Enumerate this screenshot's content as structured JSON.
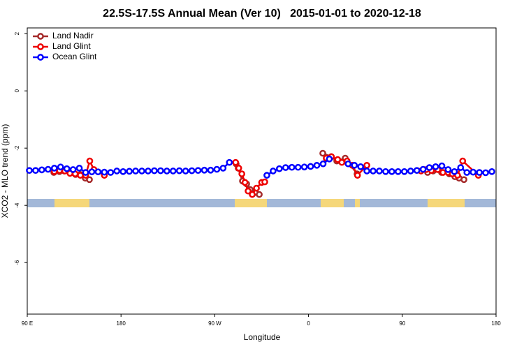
{
  "chart_data": {
    "type": "line",
    "title": "22.5S-17.5S Annual Mean (Ver 10)   2015-01-01 to 2020-12-18",
    "xlabel": "Longitude",
    "ylabel": "XCO2 - MLO trend (ppm)",
    "xlim": [
      90,
      540
    ],
    "ylim": [
      -7.8,
      2.2
    ],
    "xticks": [
      {
        "value": 90,
        "label": "90 E"
      },
      180,
      {
        "value": 270,
        "label": "90 W"
      },
      {
        "value": 360,
        "label": "0"
      },
      {
        "value": 450,
        "label": "90"
      },
      {
        "value": 540,
        "label": "180"
      }
    ],
    "yticks": [
      2,
      0,
      -2,
      -4,
      -6
    ],
    "legend": "top-left",
    "series": [
      {
        "name": "Land Nadir",
        "color": "#a52a2a",
        "x": [
          115.5,
          120.9,
          125.5,
          130.9,
          136.3,
          141,
          145.7,
          149.7,
          220,
          290.5,
          292.5,
          296.6,
          300.6,
          304,
          308.7,
          312.7,
          340,
          373.7,
          381.8,
          387.1,
          395.2,
          406.6,
          440,
          474.3,
          479.6,
          487.7,
          495.1,
          500.5,
          504.5,
          509.2
        ],
        "values": [
          -2.85,
          -2.82,
          -2.8,
          -2.85,
          -2.92,
          -2.92,
          -3.05,
          -3.1,
          null,
          -2.55,
          -2.7,
          -3.15,
          -3.25,
          -3.45,
          -3.55,
          -3.62,
          null,
          -2.18,
          -2.3,
          -2.45,
          -2.35,
          -2.9,
          null,
          -2.85,
          -2.8,
          -2.85,
          -2.9,
          -3,
          -3.05,
          -3.1
        ]
      },
      {
        "name": "Land Glint",
        "color": "#ee0000",
        "x": [
          116,
          121,
          126,
          131,
          136,
          141,
          146,
          150,
          154,
          164,
          220,
          290,
          293,
          296,
          299,
          302,
          306,
          310,
          315,
          318,
          350,
          377,
          382,
          388,
          392,
          397,
          402,
          407,
          416,
          450,
          468,
          473,
          478,
          484,
          489,
          494,
          498,
          503,
          508,
          523
        ],
        "values": [
          -2.82,
          -2.78,
          -2.8,
          -2.88,
          -2.9,
          -2.95,
          -2.95,
          -2.45,
          -2.75,
          -2.95,
          null,
          -2.5,
          -2.7,
          -2.9,
          -3.2,
          -3.5,
          -3.62,
          -3.4,
          -3.2,
          -3.18,
          null,
          -2.35,
          -2.3,
          -2.4,
          -2.5,
          -2.45,
          -2.6,
          -2.95,
          -2.6,
          null,
          -2.8,
          -2.75,
          -2.78,
          -2.75,
          -2.85,
          -2.85,
          -2.9,
          -2.95,
          -2.45,
          -2.95
        ]
      },
      {
        "name": "Ocean Glint",
        "color": "#0000ff",
        "x": [
          92,
          98,
          104,
          110,
          116,
          122,
          128,
          134,
          140,
          146,
          152,
          158,
          164,
          170,
          176,
          182,
          188,
          194,
          200,
          206,
          212,
          218,
          224,
          230,
          236,
          242,
          248,
          254,
          260,
          266,
          272,
          278,
          284,
          290,
          296,
          302,
          308,
          314,
          320,
          326,
          332,
          338,
          344,
          350,
          356,
          362,
          368,
          374,
          380,
          386,
          392,
          398,
          404,
          410,
          416,
          422,
          428,
          434,
          440,
          446,
          452,
          458,
          464,
          470,
          476,
          482,
          488,
          494,
          500,
          506,
          512,
          518,
          524,
          530,
          536
        ],
        "values": [
          -2.78,
          -2.78,
          -2.76,
          -2.74,
          -2.7,
          -2.66,
          -2.72,
          -2.75,
          -2.7,
          -2.85,
          -2.83,
          -2.83,
          -2.84,
          -2.85,
          -2.8,
          -2.82,
          -2.81,
          -2.8,
          -2.8,
          -2.8,
          -2.79,
          -2.79,
          -2.8,
          -2.8,
          -2.79,
          -2.8,
          -2.79,
          -2.78,
          -2.77,
          -2.77,
          -2.74,
          -2.7,
          -2.5,
          null,
          null,
          null,
          null,
          null,
          -2.95,
          -2.8,
          -2.72,
          -2.68,
          -2.67,
          -2.67,
          -2.66,
          -2.64,
          -2.6,
          -2.55,
          -2.38,
          null,
          null,
          -2.55,
          -2.6,
          -2.65,
          -2.8,
          -2.8,
          -2.8,
          -2.82,
          -2.82,
          -2.82,
          -2.82,
          -2.8,
          -2.78,
          -2.74,
          -2.68,
          -2.65,
          -2.62,
          -2.75,
          -2.82,
          -2.68,
          -2.85,
          -2.84,
          -2.85,
          -2.86,
          -2.82
        ]
      }
    ]
  }
}
